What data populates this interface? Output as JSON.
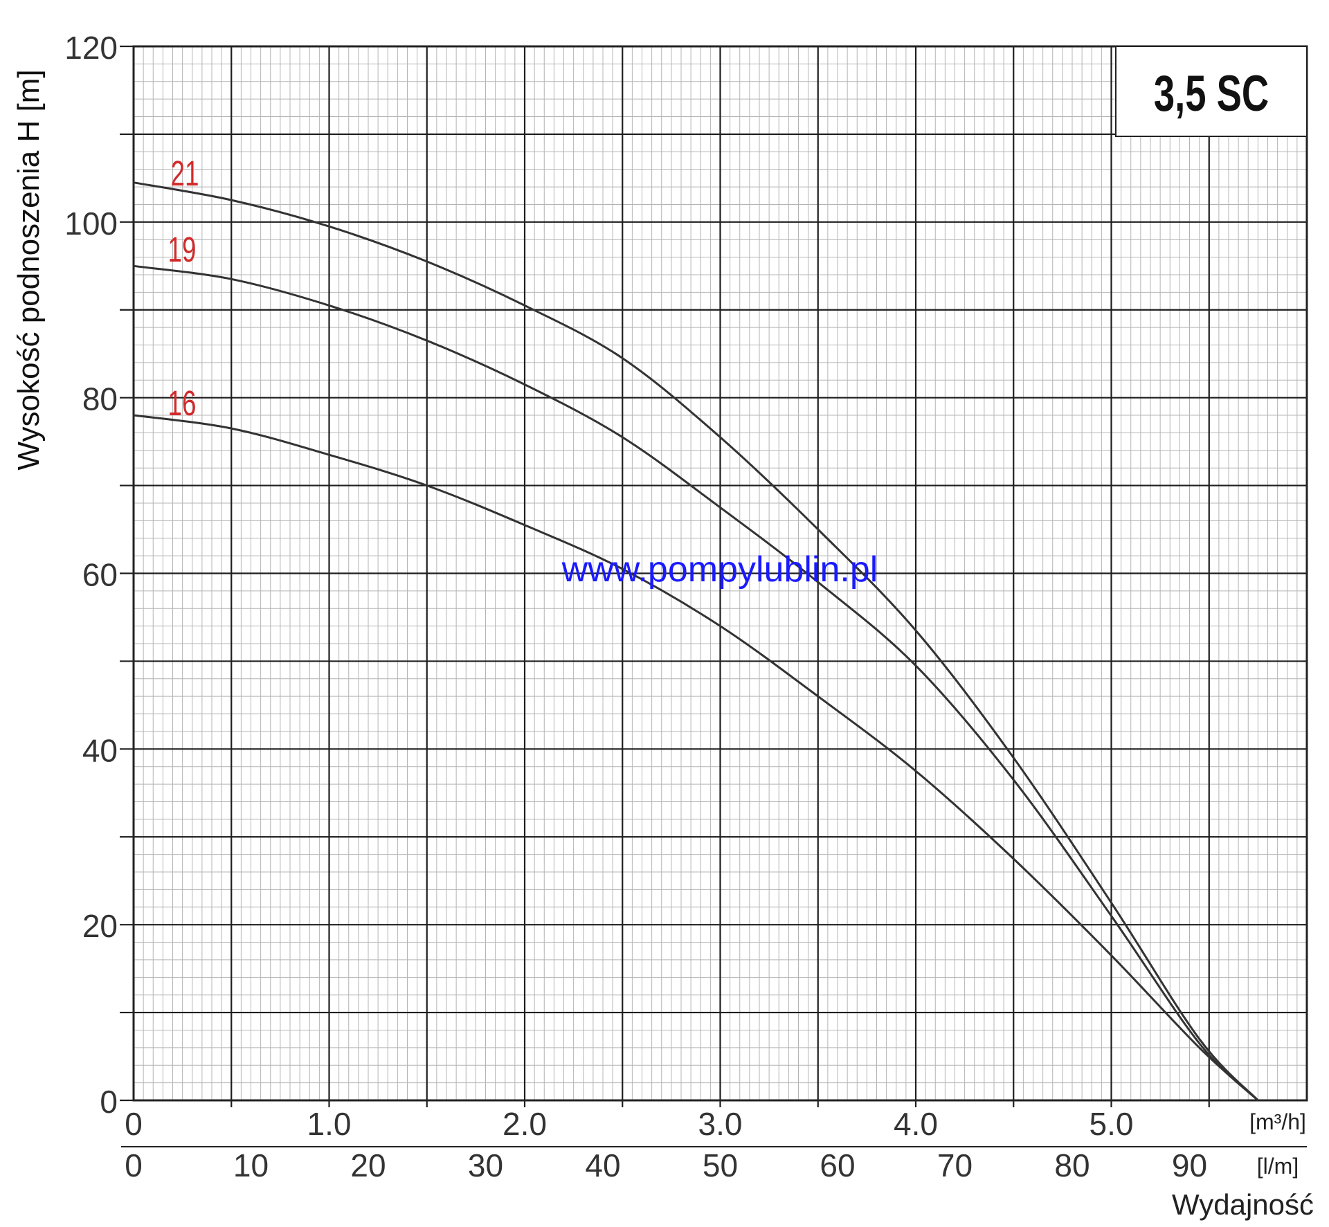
{
  "chart_data": {
    "type": "line",
    "title": "3,5 SC",
    "ylabel": "Wysokość podnoszenia H [m]",
    "xlabel": "Wydajność",
    "x_unit_primary": "[m³/h]",
    "x_unit_secondary": "[l/m]",
    "watermark": "www.pompylublin.pl",
    "grid": true,
    "xlim": [
      0,
      6.0
    ],
    "ylim": [
      0,
      120
    ],
    "x_ticks_primary": [
      "0",
      "1.0",
      "2.0",
      "3.0",
      "4.0",
      "5.0"
    ],
    "x_ticks_primary_values": [
      0,
      1,
      2,
      3,
      4,
      5
    ],
    "x_ticks_secondary": [
      "0",
      "10",
      "20",
      "30",
      "40",
      "50",
      "60",
      "70",
      "80",
      "90"
    ],
    "x_ticks_secondary_values": [
      0,
      10,
      20,
      30,
      40,
      50,
      60,
      70,
      80,
      90
    ],
    "y_ticks": [
      "0",
      "20",
      "40",
      "60",
      "80",
      "100",
      "120"
    ],
    "y_ticks_values": [
      0,
      20,
      40,
      60,
      80,
      100,
      120
    ],
    "series": [
      {
        "name": "21",
        "x": [
          0,
          0.5,
          1.0,
          1.5,
          2.0,
          2.5,
          3.0,
          3.5,
          4.0,
          4.5,
          5.0,
          5.45,
          5.75
        ],
        "y": [
          104.5,
          102.5,
          99.5,
          95.5,
          90.5,
          84.5,
          75.5,
          65,
          53.5,
          39,
          22.5,
          7,
          0
        ]
      },
      {
        "name": "19",
        "x": [
          0,
          0.5,
          1.0,
          1.5,
          2.0,
          2.5,
          3.0,
          3.5,
          4.0,
          4.5,
          5.0,
          5.45,
          5.75
        ],
        "y": [
          95,
          93.5,
          90.5,
          86.5,
          81.5,
          75.5,
          67.5,
          59,
          49.5,
          36.5,
          21,
          6.5,
          0
        ]
      },
      {
        "name": "16",
        "x": [
          0,
          0.5,
          1.0,
          1.5,
          2.0,
          2.5,
          3.0,
          3.5,
          4.0,
          4.5,
          5.0,
          5.45,
          5.75
        ],
        "y": [
          78,
          76.5,
          73.5,
          70,
          65.5,
          60.5,
          54,
          46,
          37.5,
          27.5,
          16.5,
          6,
          0
        ]
      }
    ]
  }
}
